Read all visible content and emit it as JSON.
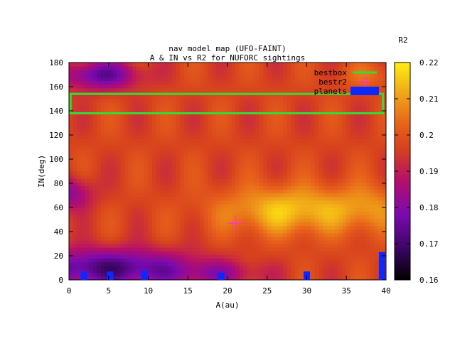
{
  "chart_data": {
    "type": "heatmap",
    "title": "nav model map (UFO-FAINT)",
    "subtitle": "A & IN vs R2 for NUFORC sightings",
    "xlabel": "A(au)",
    "ylabel": "IN(deg)",
    "xlim": [
      0,
      40
    ],
    "ylim": [
      0,
      180
    ],
    "x_ticks": [
      0,
      5,
      10,
      15,
      20,
      25,
      30,
      35,
      40
    ],
    "y_ticks": [
      0,
      20,
      40,
      60,
      80,
      100,
      120,
      140,
      160,
      180
    ],
    "colorbar": {
      "label": "R2",
      "range": [
        0.16,
        0.22
      ],
      "ticks": [
        0.16,
        0.17,
        0.18,
        0.19,
        0.2,
        0.21,
        0.22
      ],
      "tick_labels": [
        "0.16",
        "0.17",
        "0.18",
        "0.19",
        "0.2",
        "0.21",
        "0.22"
      ],
      "palette": [
        "#000000",
        "#7a0ab0",
        "#b60f6a",
        "#d6401e",
        "#e8641a",
        "#f0b21a",
        "#ffee10"
      ]
    },
    "grid": false,
    "legend_position": "top-right",
    "series": [
      {
        "name": "bestbox",
        "kind": "rectangle",
        "color": "#33dd33",
        "x_range": [
          0.2,
          39.6
        ],
        "y_range": [
          138,
          154
        ]
      },
      {
        "name": "bestr2",
        "kind": "point",
        "color": "#ff33cc",
        "points": [
          [
            21,
            47
          ]
        ]
      },
      {
        "name": "planets",
        "kind": "bar",
        "color": "#0a28ff",
        "points": [
          [
            1.9,
            7
          ],
          [
            5.2,
            7
          ],
          [
            9.5,
            8
          ],
          [
            19.2,
            6
          ],
          [
            30.0,
            7
          ],
          [
            39.5,
            23
          ]
        ]
      }
    ],
    "r2_field_description": "R2 surface over A and IN"
  }
}
